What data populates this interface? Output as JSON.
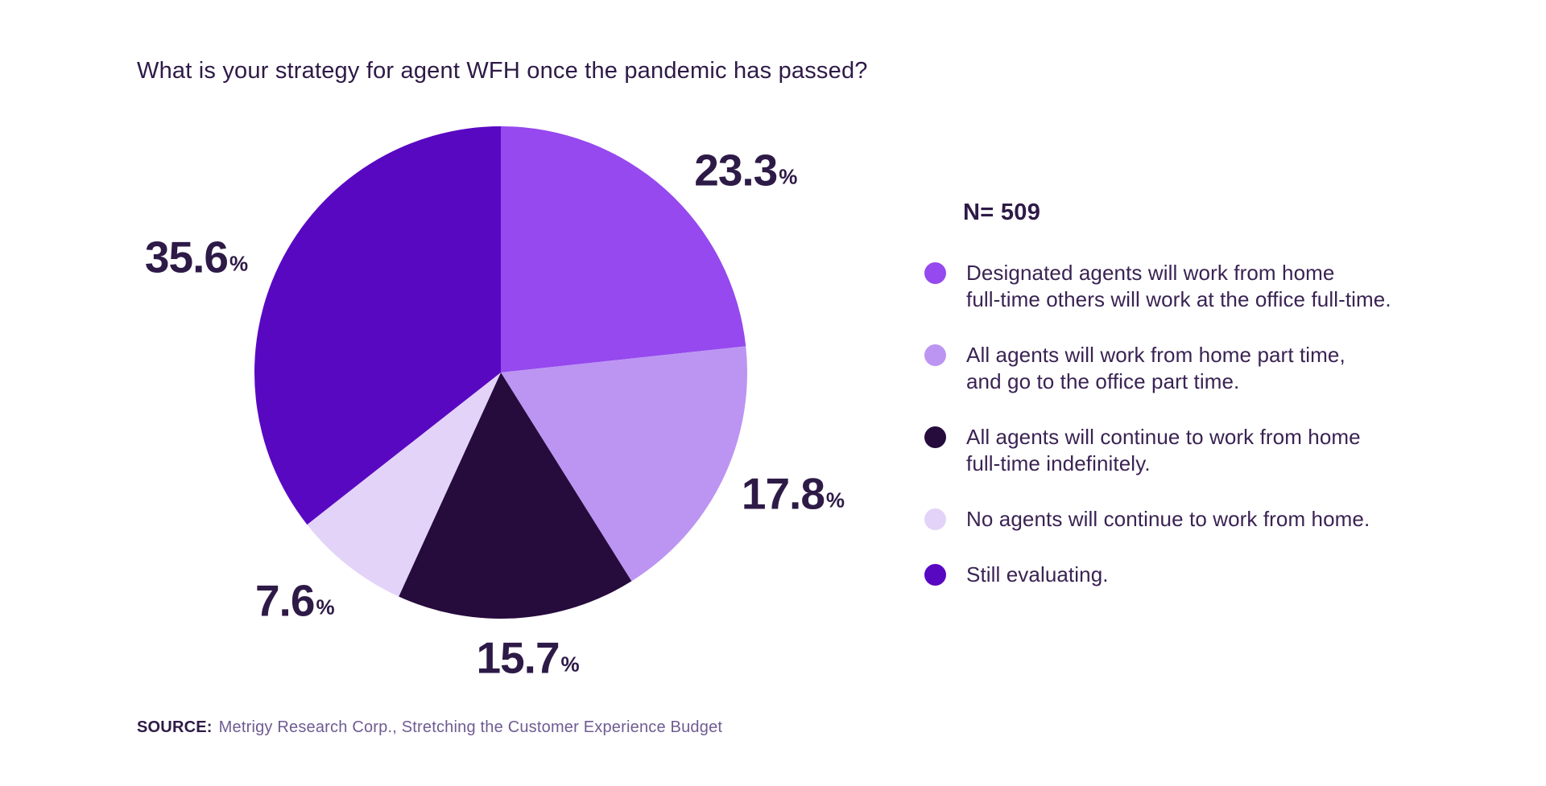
{
  "chart_data": {
    "type": "pie",
    "title": "What is your strategy for agent WFH once the pandemic has passed?",
    "sample_label": "N= 509",
    "start_angle_deg": 0,
    "direction": "clockwise",
    "percent_suffix": "%",
    "legend_position": "right",
    "text_color": "#2E1A47",
    "slices": [
      {
        "label": "Designated agents will work from home full-time others will work at the office full-time.",
        "legend_lines": [
          "Designated agents will work from home",
          "full-time others will work at the office full-time."
        ],
        "value": 23.3,
        "color": "#9549EE"
      },
      {
        "label": "All agents will work from home part time, and go to the office part time.",
        "legend_lines": [
          "All agents will work from home part time,",
          "and go to the office part time."
        ],
        "value": 17.8,
        "color": "#BC95F2"
      },
      {
        "label": "All agents will continue to work from home full-time indefinitely.",
        "legend_lines": [
          "All agents will continue to work from home",
          "full-time indefinitely."
        ],
        "value": 15.7,
        "color": "#260B3D"
      },
      {
        "label": "No agents will continue to work from home.",
        "legend_lines": [
          "No agents will continue to work from home."
        ],
        "value": 7.6,
        "color": "#E3D3F8"
      },
      {
        "label": "Still evaluating.",
        "legend_lines": [
          "Still evaluating."
        ],
        "value": 35.6,
        "color": "#5908C2"
      }
    ]
  },
  "source": {
    "prefix": "SOURCE:",
    "text": "Metrigy Research Corp., Stretching the Customer Experience Budget"
  }
}
